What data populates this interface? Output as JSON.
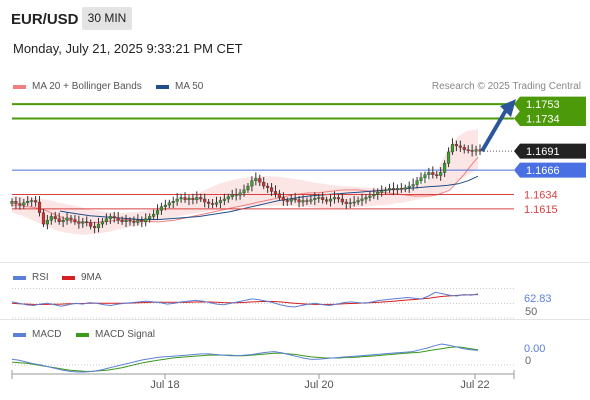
{
  "header": {
    "pair": "EUR/USD",
    "timeframe": "30 MIN",
    "timestamp": "Monday, July 21, 2025 9:33:21 PM CET"
  },
  "legends": {
    "price": [
      {
        "label": "MA 20 + Bollinger Bands",
        "color": "#f08080"
      },
      {
        "label": "MA 50",
        "color": "#1f4e8c"
      }
    ],
    "rsi": [
      {
        "label": "RSI",
        "color": "#5b7fd6"
      },
      {
        "label": "9MA",
        "color": "#d42020"
      }
    ],
    "macd": [
      {
        "label": "MACD",
        "color": "#5b7fd6"
      },
      {
        "label": "MACD Signal",
        "color": "#3a9a1a"
      }
    ]
  },
  "credit": "Research © 2025 Trading Central",
  "colors": {
    "resistance": "#4c9a0a",
    "pivot": "#4a6fe3",
    "support": "#d94040",
    "last_price": "#222222",
    "bullish": "#3aa02e",
    "bearish": "#d43030",
    "arrow": "#2b579a"
  },
  "chart_data": {
    "type": "candlestick",
    "ylim": [
      1.1545,
      1.1765
    ],
    "x_ticks": [
      "Jul 18",
      "Jul 20",
      "Jul 22"
    ],
    "levels": [
      {
        "value": 1.1753,
        "label": "1.1753",
        "kind": "resistance"
      },
      {
        "value": 1.1734,
        "label": "1.1734",
        "kind": "resistance"
      },
      {
        "value": 1.1691,
        "label": "1.1691",
        "kind": "last"
      },
      {
        "value": 1.1666,
        "label": "1.1666",
        "kind": "pivot"
      },
      {
        "value": 1.1634,
        "label": "1.1634",
        "kind": "support"
      },
      {
        "value": 1.1615,
        "label": "1.1615",
        "kind": "support"
      }
    ],
    "closes": [
      1.1625,
      1.1622,
      1.162,
      1.1623,
      1.1625,
      1.1626,
      1.1624,
      1.161,
      1.1595,
      1.16,
      1.1605,
      1.1602,
      1.1598,
      1.16,
      1.1603,
      1.1601,
      1.1598,
      1.1596,
      1.1598,
      1.1597,
      1.1592,
      1.159,
      1.1595,
      1.1598,
      1.1602,
      1.1605,
      1.1603,
      1.16,
      1.1598,
      1.16,
      1.1599,
      1.1597,
      1.16,
      1.1598,
      1.1602,
      1.1605,
      1.1608,
      1.1613,
      1.1618,
      1.162,
      1.1623,
      1.1625,
      1.1628,
      1.163,
      1.1627,
      1.1629,
      1.1627,
      1.163,
      1.1628,
      1.1624,
      1.1622,
      1.1621,
      1.1623,
      1.1626,
      1.1628,
      1.1631,
      1.1634,
      1.1633,
      1.1636,
      1.164,
      1.1645,
      1.1652,
      1.1655,
      1.165,
      1.1645,
      1.1643,
      1.1638,
      1.1635,
      1.163,
      1.1626,
      1.1625,
      1.1628,
      1.1627,
      1.1624,
      1.1626,
      1.1625,
      1.1627,
      1.1629,
      1.163,
      1.1627,
      1.1625,
      1.1628,
      1.163,
      1.1628,
      1.1624,
      1.1622,
      1.1623,
      1.1624,
      1.1626,
      1.1628,
      1.163,
      1.1632,
      1.1634,
      1.1637,
      1.1639,
      1.164,
      1.1642,
      1.164,
      1.1642,
      1.1641,
      1.1643,
      1.1645,
      1.1647,
      1.1652,
      1.1656,
      1.166,
      1.1663,
      1.166,
      1.1659,
      1.1663,
      1.1675,
      1.169,
      1.17,
      1.1698,
      1.1696,
      1.1693,
      1.1692,
      1.1691,
      1.1693,
      1.1691
    ],
    "ma20": [
      1.162,
      1.162,
      1.1618,
      1.1617,
      1.1615,
      1.1612,
      1.1608,
      1.1604,
      1.16,
      1.1598,
      1.1597,
      1.1597,
      1.1597,
      1.1598,
      1.1599,
      1.16,
      1.1601,
      1.1601,
      1.16,
      1.1599,
      1.1598,
      1.1598,
      1.1599,
      1.16,
      1.1602,
      1.1604,
      1.1606,
      1.1608,
      1.161,
      1.1612,
      1.1614,
      1.1616,
      1.1618,
      1.162,
      1.1622,
      1.1624,
      1.1626,
      1.1628,
      1.163,
      1.1632,
      1.1634,
      1.1635,
      1.1636,
      1.1636,
      1.1637,
      1.1638,
      1.1639,
      1.164,
      1.164,
      1.164,
      1.1639,
      1.1638,
      1.1637,
      1.1636,
      1.1635,
      1.1634,
      1.1633,
      1.1632,
      1.1632,
      1.1632,
      1.1633,
      1.1636,
      1.164,
      1.165,
      1.166,
      1.1672,
      1.1683
    ],
    "ma50": [
      1.1612,
      1.161,
      1.1608,
      1.1606,
      1.1605,
      1.1604,
      1.1603,
      1.1602,
      1.1601,
      1.1601,
      1.1601,
      1.1602,
      1.1603,
      1.1604,
      1.1605,
      1.1607,
      1.1609,
      1.1611,
      1.1614,
      1.1617,
      1.162,
      1.1623,
      1.1626,
      1.1628,
      1.163,
      1.1632,
      1.1633,
      1.1634,
      1.1635,
      1.1636,
      1.1637,
      1.1638,
      1.1639,
      1.164,
      1.1641,
      1.1642,
      1.1643,
      1.1644,
      1.1645,
      1.1646,
      1.1648,
      1.1652,
      1.1658
    ],
    "bb_upper": [
      1.1632,
      1.1631,
      1.163,
      1.1628,
      1.1625,
      1.1622,
      1.1619,
      1.1616,
      1.1613,
      1.1611,
      1.161,
      1.161,
      1.1611,
      1.1613,
      1.1616,
      1.162,
      1.1625,
      1.163,
      1.1636,
      1.1642,
      1.1648,
      1.1652,
      1.1655,
      1.1657,
      1.1658,
      1.1658,
      1.1657,
      1.1655,
      1.1653,
      1.165,
      1.1648,
      1.1646,
      1.1645,
      1.1644,
      1.1643,
      1.1642,
      1.1642,
      1.1642,
      1.1643,
      1.1645,
      1.165,
      1.1665,
      1.169,
      1.171,
      1.1718,
      1.172
    ],
    "bb_lower": [
      1.161,
      1.1606,
      1.16,
      1.1594,
      1.1588,
      1.1584,
      1.1582,
      1.1581,
      1.1582,
      1.1584,
      1.1587,
      1.159,
      1.1593,
      1.1596,
      1.1599,
      1.1602,
      1.1605,
      1.1608,
      1.161,
      1.1612,
      1.1614,
      1.1616,
      1.1617,
      1.1618,
      1.1619,
      1.1619,
      1.1619,
      1.1619,
      1.1618,
      1.1617,
      1.1616,
      1.1616,
      1.1616,
      1.1617,
      1.1618,
      1.1619,
      1.162,
      1.1622,
      1.1624,
      1.1627,
      1.163,
      1.1633,
      1.164,
      1.165,
      1.166,
      1.1668
    ],
    "rsi": {
      "ylim": [
        30,
        75
      ],
      "last": "62.83",
      "ref_label": "50",
      "rsi_values": [
        52,
        50,
        48,
        47,
        49,
        50,
        48,
        46,
        48,
        50,
        49,
        51,
        50,
        48,
        47,
        49,
        50,
        51,
        52,
        53,
        52,
        51,
        49,
        50,
        52,
        53,
        54,
        53,
        51,
        49,
        48,
        50,
        52,
        54,
        56,
        55,
        53,
        51,
        48,
        46,
        45,
        47,
        49,
        50,
        48,
        47,
        49,
        51,
        52,
        51,
        50,
        52,
        54,
        55,
        56,
        57,
        58,
        57,
        56,
        60,
        65,
        63,
        61,
        60,
        62,
        61,
        62.8
      ],
      "ma_values": [
        50,
        49.5,
        49,
        48.6,
        48.4,
        48.5,
        48.8,
        49,
        49.3,
        49.6,
        49.8,
        50,
        50.1,
        50.2,
        50.1,
        50.0,
        50.1,
        50.4,
        50.8,
        51.2,
        51.5,
        51.6,
        51.5,
        51.4,
        51.3,
        51.5,
        51.8,
        52,
        51.8,
        51.4,
        51,
        50.8,
        50.9,
        51.3,
        51.9,
        52.4,
        52.7,
        52.5,
        51.9,
        51,
        50.1,
        49.3,
        48.8,
        48.5,
        48.4,
        48.5,
        48.8,
        49.3,
        49.8,
        50.2,
        50.6,
        51,
        51.6,
        52.2,
        52.9,
        53.7,
        54.5,
        55.2,
        56,
        57,
        58.3,
        59.4,
        60.2,
        60.8,
        61.3,
        61.6,
        61.9
      ]
    },
    "macd": {
      "last": "0.00",
      "zero_label": "0",
      "macd_values": [
        0.001,
        0.0008,
        0.0005,
        0.0002,
        0.0,
        -0.0003,
        -0.0006,
        -0.0009,
        -0.0011,
        -0.0012,
        -0.0012,
        -0.0011,
        -0.0009,
        -0.0006,
        -0.0003,
        0.0,
        0.0003,
        0.0006,
        0.0009,
        0.0011,
        0.0013,
        0.0014,
        0.0015,
        0.0016,
        0.0017,
        0.0018,
        0.0019,
        0.0019,
        0.0018,
        0.0017,
        0.0016,
        0.0016,
        0.0017,
        0.0018,
        0.002,
        0.0022,
        0.0023,
        0.0021,
        0.0018,
        0.0015,
        0.0012,
        0.001,
        0.001,
        0.0011,
        0.0012,
        0.0013,
        0.0014,
        0.0015,
        0.0016,
        0.0017,
        0.0018,
        0.0019,
        0.002,
        0.0021,
        0.0022,
        0.0023,
        0.0026,
        0.0029,
        0.0033,
        0.0036,
        0.0034,
        0.0031,
        0.0028,
        0.0026,
        0.0025
      ],
      "signal_values": [
        0.0005,
        0.0004,
        0.0003,
        0.0001,
        -0.0001,
        -0.0003,
        -0.0005,
        -0.0007,
        -0.0009,
        -0.001,
        -0.0011,
        -0.0011,
        -0.001,
        -0.0009,
        -0.0007,
        -0.0005,
        -0.0002,
        0.0001,
        0.0004,
        0.0006,
        0.0008,
        0.001,
        0.0012,
        0.0013,
        0.0014,
        0.0015,
        0.0016,
        0.0017,
        0.0017,
        0.0017,
        0.0017,
        0.0016,
        0.0016,
        0.0017,
        0.0018,
        0.0019,
        0.002,
        0.002,
        0.0019,
        0.0018,
        0.0016,
        0.0014,
        0.0013,
        0.0012,
        0.0012,
        0.0012,
        0.0013,
        0.0013,
        0.0014,
        0.0015,
        0.0016,
        0.0017,
        0.0018,
        0.0019,
        0.002,
        0.0021,
        0.0022,
        0.0024,
        0.0026,
        0.0028,
        0.003,
        0.0031,
        0.003,
        0.0028,
        0.0026
      ]
    }
  }
}
